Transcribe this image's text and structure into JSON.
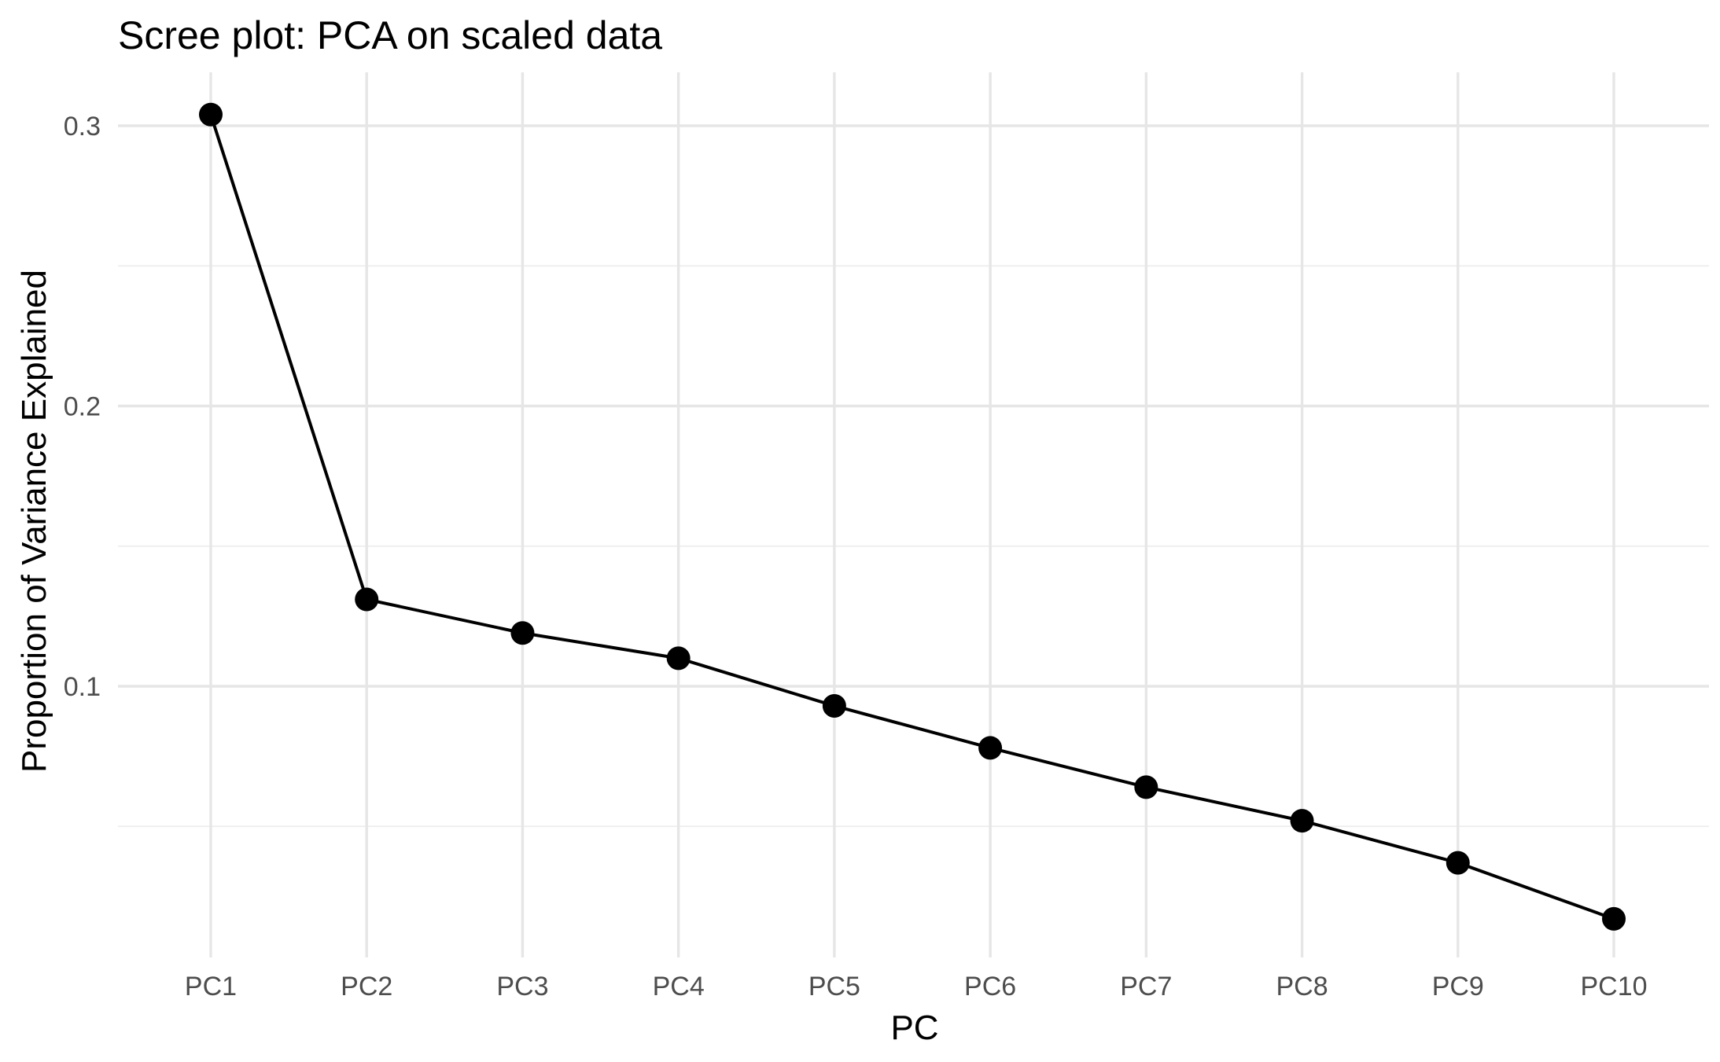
{
  "chart_data": {
    "type": "line",
    "title": "Scree plot: PCA on scaled data",
    "xlabel": "PC",
    "ylabel": "Proportion of Variance Explained",
    "categories": [
      "PC1",
      "PC2",
      "PC3",
      "PC4",
      "PC5",
      "PC6",
      "PC7",
      "PC8",
      "PC9",
      "PC10"
    ],
    "series": [
      {
        "values": [
          0.304,
          0.131,
          0.119,
          0.11,
          0.093,
          0.078,
          0.064,
          0.052,
          0.037,
          0.017
        ]
      }
    ],
    "ylim": [
      0.0,
      0.32
    ],
    "yticks": [
      0.1,
      0.2,
      0.3
    ],
    "ytick_labels": [
      "0.1",
      "0.2",
      "0.3"
    ],
    "grid": true,
    "legend": "none",
    "colors": {
      "line": "#000000",
      "points": "#000000",
      "grid": "#e6e6e6",
      "background": "#ffffff"
    }
  }
}
